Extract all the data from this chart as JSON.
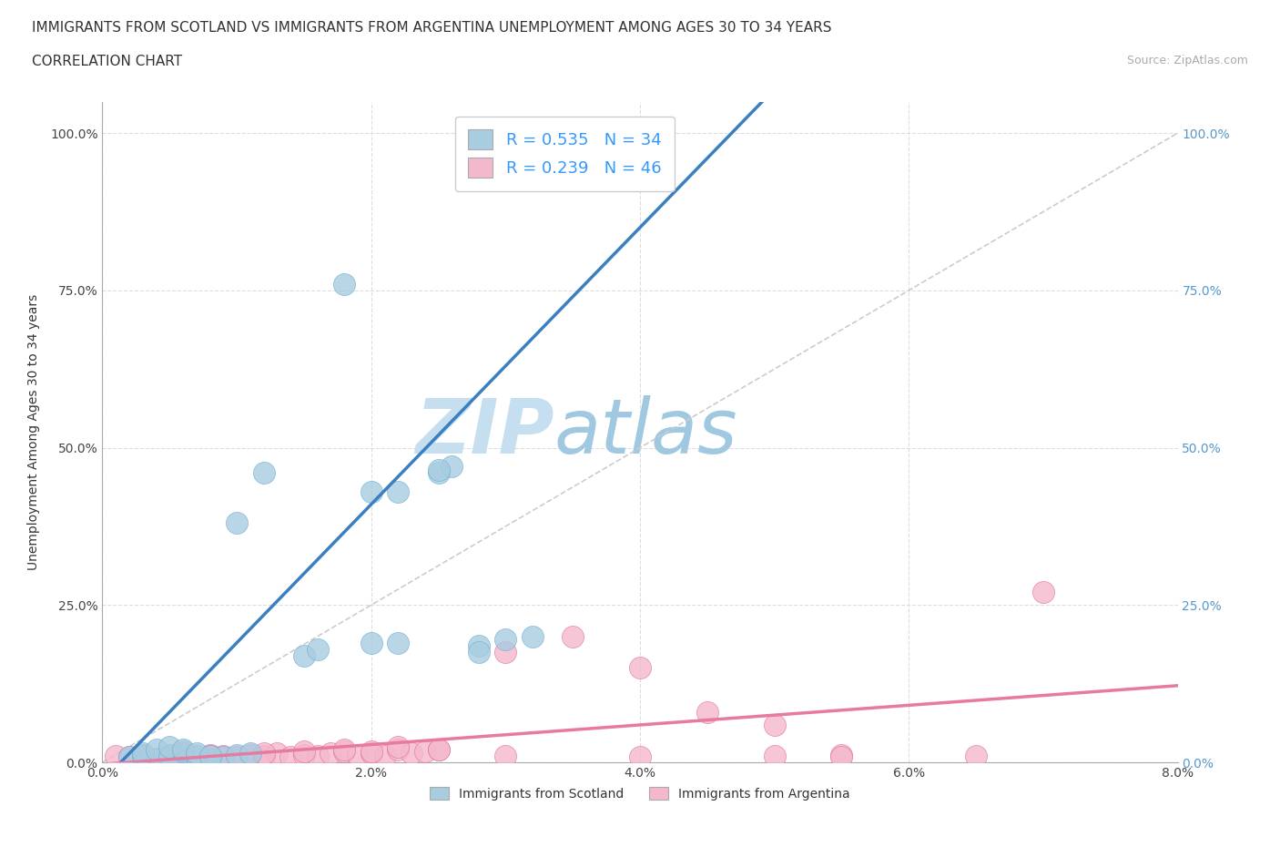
{
  "title_line1": "IMMIGRANTS FROM SCOTLAND VS IMMIGRANTS FROM ARGENTINA UNEMPLOYMENT AMONG AGES 30 TO 34 YEARS",
  "title_line2": "CORRELATION CHART",
  "source_text": "Source: ZipAtlas.com",
  "ylabel": "Unemployment Among Ages 30 to 34 years",
  "xlim": [
    0.0,
    0.08
  ],
  "ylim": [
    0.0,
    1.05
  ],
  "xtick_labels": [
    "0.0%",
    "2.0%",
    "4.0%",
    "6.0%",
    "8.0%"
  ],
  "xtick_vals": [
    0.0,
    0.02,
    0.04,
    0.06,
    0.08
  ],
  "ytick_labels": [
    "0.0%",
    "25.0%",
    "50.0%",
    "75.0%",
    "100.0%"
  ],
  "ytick_vals": [
    0.0,
    0.25,
    0.5,
    0.75,
    1.0
  ],
  "scotland_color": "#a8cce0",
  "argentina_color": "#f4b8cc",
  "scotland_line_color": "#3a7fc1",
  "argentina_line_color": "#e87aa0",
  "diagonal_color": "#cccccc",
  "watermark_color_zip": "#c5dff0",
  "watermark_color_atlas": "#a0c8e0",
  "legend_text1": "R = 0.535   N = 34",
  "legend_text2": "R = 0.239   N = 46",
  "legend_color": "#3399ff",
  "title_fontsize": 11,
  "label_fontsize": 10,
  "tick_fontsize": 10,
  "legend_fontsize": 13,
  "scotland_x": [
    0.002,
    0.003,
    0.004,
    0.005,
    0.006,
    0.003,
    0.004,
    0.005,
    0.006,
    0.007,
    0.008,
    0.009,
    0.01,
    0.011,
    0.005,
    0.006,
    0.007,
    0.008,
    0.015,
    0.016,
    0.02,
    0.025,
    0.026,
    0.028,
    0.03,
    0.012,
    0.01,
    0.018,
    0.02,
    0.022,
    0.022,
    0.025,
    0.028,
    0.032
  ],
  "scotland_y": [
    0.008,
    0.01,
    0.005,
    0.012,
    0.006,
    0.015,
    0.02,
    0.008,
    0.018,
    0.01,
    0.005,
    0.008,
    0.012,
    0.015,
    0.025,
    0.02,
    0.015,
    0.01,
    0.17,
    0.18,
    0.19,
    0.46,
    0.47,
    0.185,
    0.195,
    0.46,
    0.38,
    0.76,
    0.43,
    0.43,
    0.19,
    0.465,
    0.175,
    0.2
  ],
  "argentina_x": [
    0.001,
    0.002,
    0.003,
    0.004,
    0.005,
    0.006,
    0.007,
    0.008,
    0.009,
    0.01,
    0.011,
    0.012,
    0.013,
    0.014,
    0.015,
    0.016,
    0.017,
    0.018,
    0.019,
    0.02,
    0.021,
    0.022,
    0.023,
    0.024,
    0.025,
    0.003,
    0.005,
    0.008,
    0.012,
    0.015,
    0.018,
    0.02,
    0.022,
    0.025,
    0.03,
    0.035,
    0.04,
    0.045,
    0.05,
    0.03,
    0.04,
    0.055,
    0.065,
    0.05,
    0.055,
    0.07
  ],
  "argentina_y": [
    0.01,
    0.008,
    0.012,
    0.006,
    0.01,
    0.015,
    0.008,
    0.012,
    0.01,
    0.008,
    0.012,
    0.01,
    0.015,
    0.008,
    0.012,
    0.01,
    0.015,
    0.018,
    0.012,
    0.015,
    0.01,
    0.02,
    0.015,
    0.018,
    0.02,
    0.008,
    0.012,
    0.01,
    0.015,
    0.018,
    0.02,
    0.018,
    0.025,
    0.02,
    0.175,
    0.2,
    0.15,
    0.08,
    0.06,
    0.01,
    0.008,
    0.012,
    0.01,
    0.01,
    0.008,
    0.27
  ]
}
